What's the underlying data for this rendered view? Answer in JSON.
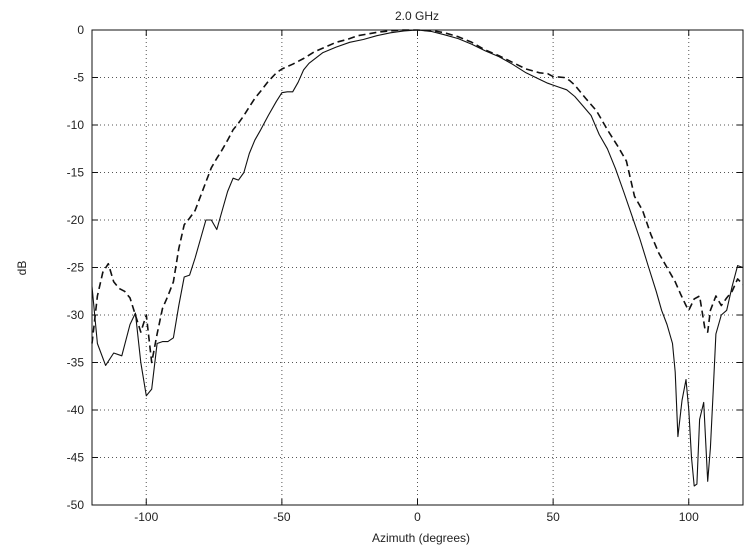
{
  "chart_data": {
    "type": "line",
    "title": "2.0 GHz",
    "xlabel": "Azimuth (degrees)",
    "ylabel": "dB",
    "xlim": [
      -120,
      120
    ],
    "ylim": [
      -50,
      0
    ],
    "xticks": [
      -100,
      -50,
      0,
      50,
      100
    ],
    "yticks": [
      0,
      -5,
      -10,
      -15,
      -20,
      -25,
      -30,
      -35,
      -40,
      -45,
      -50
    ],
    "grid": true,
    "legend": "none",
    "series": [
      {
        "style": "solid",
        "color": "#111111",
        "points": [
          [
            -120,
            -27
          ],
          [
            -118,
            -33
          ],
          [
            -115,
            -35.3
          ],
          [
            -112,
            -34
          ],
          [
            -109,
            -34.3
          ],
          [
            -106,
            -31
          ],
          [
            -104,
            -29.8
          ],
          [
            -102,
            -35
          ],
          [
            -100,
            -38.5
          ],
          [
            -98,
            -37.8
          ],
          [
            -96,
            -33
          ],
          [
            -94,
            -32.8
          ],
          [
            -92,
            -32.8
          ],
          [
            -90,
            -32.4
          ],
          [
            -88,
            -29
          ],
          [
            -86,
            -26
          ],
          [
            -84,
            -25.8
          ],
          [
            -82,
            -24
          ],
          [
            -80,
            -22
          ],
          [
            -78,
            -20
          ],
          [
            -76,
            -20
          ],
          [
            -74,
            -21
          ],
          [
            -72,
            -19
          ],
          [
            -70,
            -17
          ],
          [
            -68,
            -15.6
          ],
          [
            -66,
            -15.8
          ],
          [
            -64,
            -15
          ],
          [
            -62,
            -13
          ],
          [
            -60,
            -11.6
          ],
          [
            -58,
            -10.6
          ],
          [
            -55,
            -9
          ],
          [
            -52,
            -7.5
          ],
          [
            -50,
            -6.6
          ],
          [
            -48,
            -6.5
          ],
          [
            -46,
            -6.5
          ],
          [
            -44,
            -5.5
          ],
          [
            -42,
            -4.2
          ],
          [
            -40,
            -3.5
          ],
          [
            -35,
            -2.4
          ],
          [
            -30,
            -1.8
          ],
          [
            -25,
            -1.3
          ],
          [
            -20,
            -1
          ],
          [
            -15,
            -0.6
          ],
          [
            -10,
            -0.3
          ],
          [
            -5,
            -0.1
          ],
          [
            0,
            0
          ],
          [
            5,
            -0.15
          ],
          [
            10,
            -0.5
          ],
          [
            15,
            -0.9
          ],
          [
            20,
            -1.5
          ],
          [
            25,
            -2.2
          ],
          [
            30,
            -2.8
          ],
          [
            35,
            -3.6
          ],
          [
            40,
            -4.5
          ],
          [
            45,
            -5.2
          ],
          [
            48,
            -5.6
          ],
          [
            50,
            -5.8
          ],
          [
            52,
            -6
          ],
          [
            55,
            -6.3
          ],
          [
            58,
            -7
          ],
          [
            61,
            -8
          ],
          [
            64,
            -9
          ],
          [
            67,
            -11
          ],
          [
            70,
            -12.5
          ],
          [
            73,
            -14.6
          ],
          [
            76,
            -17
          ],
          [
            79,
            -19.5
          ],
          [
            82,
            -22
          ],
          [
            85,
            -24.8
          ],
          [
            88,
            -27.5
          ],
          [
            90,
            -29.5
          ],
          [
            92,
            -31
          ],
          [
            94,
            -33
          ],
          [
            95,
            -36
          ],
          [
            96,
            -42.8
          ],
          [
            97.5,
            -39
          ],
          [
            99,
            -36.8
          ],
          [
            100,
            -40
          ],
          [
            101,
            -45
          ],
          [
            102,
            -48
          ],
          [
            103,
            -47.8
          ],
          [
            104,
            -41
          ],
          [
            105.5,
            -39.2
          ],
          [
            107,
            -47.5
          ],
          [
            108,
            -44
          ],
          [
            109,
            -38
          ],
          [
            110,
            -32
          ],
          [
            112,
            -30
          ],
          [
            114,
            -29.5
          ],
          [
            116,
            -27
          ],
          [
            118,
            -24.8
          ],
          [
            120,
            -25
          ]
        ]
      },
      {
        "style": "dashed",
        "color": "#111111",
        "points": [
          [
            -120,
            -33
          ],
          [
            -118,
            -28
          ],
          [
            -116,
            -25.5
          ],
          [
            -114,
            -24.6
          ],
          [
            -112,
            -26.5
          ],
          [
            -110,
            -27.2
          ],
          [
            -108,
            -27.5
          ],
          [
            -106,
            -28.2
          ],
          [
            -104,
            -30
          ],
          [
            -102,
            -31.8
          ],
          [
            -100,
            -30
          ],
          [
            -98,
            -35
          ],
          [
            -96,
            -32
          ],
          [
            -94,
            -29.3
          ],
          [
            -92,
            -28
          ],
          [
            -90,
            -26.5
          ],
          [
            -88,
            -23
          ],
          [
            -86,
            -20.5
          ],
          [
            -84,
            -19.8
          ],
          [
            -82,
            -19
          ],
          [
            -80,
            -17.5
          ],
          [
            -78,
            -16
          ],
          [
            -76,
            -14.5
          ],
          [
            -74,
            -13.5
          ],
          [
            -72,
            -12.6
          ],
          [
            -70,
            -11.6
          ],
          [
            -68,
            -10.5
          ],
          [
            -66,
            -9.8
          ],
          [
            -64,
            -9
          ],
          [
            -62,
            -8.1
          ],
          [
            -60,
            -7.2
          ],
          [
            -58,
            -6.5
          ],
          [
            -55,
            -5.4
          ],
          [
            -52,
            -4.5
          ],
          [
            -50,
            -4.1
          ],
          [
            -46,
            -3.6
          ],
          [
            -42,
            -3
          ],
          [
            -38,
            -2.3
          ],
          [
            -34,
            -1.8
          ],
          [
            -30,
            -1.3
          ],
          [
            -26,
            -1
          ],
          [
            -22,
            -0.6
          ],
          [
            -18,
            -0.4
          ],
          [
            -14,
            -0.2
          ],
          [
            -10,
            -0.1
          ],
          [
            -6,
            0
          ],
          [
            0,
            0
          ],
          [
            6,
            -0.1
          ],
          [
            10,
            -0.3
          ],
          [
            15,
            -0.7
          ],
          [
            20,
            -1.3
          ],
          [
            25,
            -2.1
          ],
          [
            30,
            -2.7
          ],
          [
            35,
            -3.4
          ],
          [
            40,
            -4.1
          ],
          [
            45,
            -4.5
          ],
          [
            48,
            -4.6
          ],
          [
            50,
            -4.9
          ],
          [
            54,
            -5
          ],
          [
            56,
            -5.3
          ],
          [
            58,
            -5.8
          ],
          [
            62,
            -7.2
          ],
          [
            66,
            -8.5
          ],
          [
            70,
            -10.5
          ],
          [
            74,
            -12.3
          ],
          [
            77,
            -13.8
          ],
          [
            80,
            -17.5
          ],
          [
            83,
            -19
          ],
          [
            86,
            -21.5
          ],
          [
            89,
            -23.5
          ],
          [
            92,
            -25
          ],
          [
            95,
            -26.5
          ],
          [
            97,
            -27.8
          ],
          [
            99,
            -29
          ],
          [
            100,
            -29.5
          ],
          [
            102,
            -28.3
          ],
          [
            104,
            -28
          ],
          [
            106,
            -31.5
          ],
          [
            107,
            -31.8
          ],
          [
            108,
            -29.5
          ],
          [
            110,
            -28
          ],
          [
            112,
            -29
          ],
          [
            114,
            -28.2
          ],
          [
            116,
            -27.5
          ],
          [
            118,
            -26.2
          ],
          [
            120,
            -26.8
          ]
        ]
      }
    ]
  }
}
